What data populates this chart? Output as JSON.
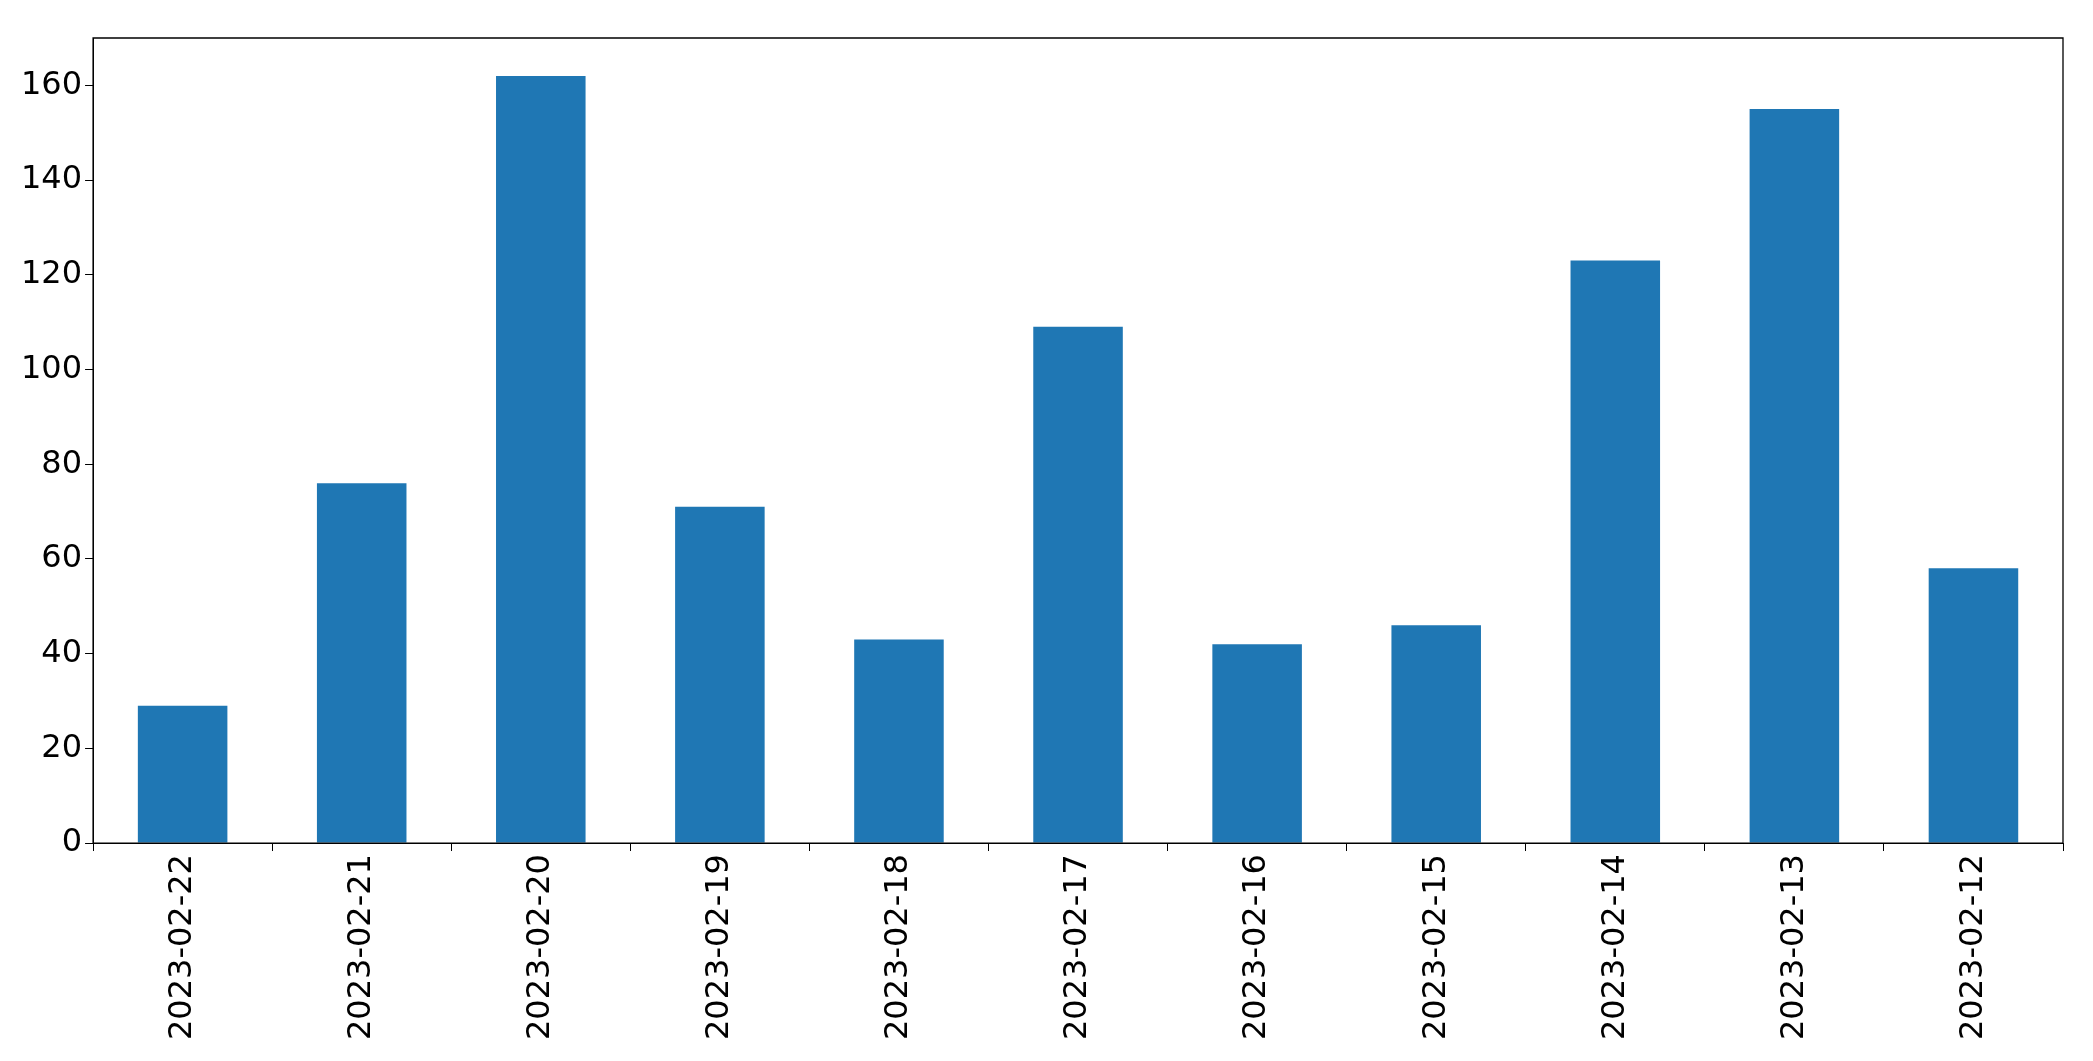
{
  "chart_data": {
    "type": "bar",
    "categories": [
      "2023-02-22",
      "2023-02-21",
      "2023-02-20",
      "2023-02-19",
      "2023-02-18",
      "2023-02-17",
      "2023-02-16",
      "2023-02-15",
      "2023-02-14",
      "2023-02-13",
      "2023-02-12"
    ],
    "values": [
      29,
      76,
      162,
      71,
      43,
      109,
      42,
      46,
      123,
      155,
      58
    ],
    "color": "#1f77b4",
    "ylim": [
      0,
      170
    ],
    "yticks": [
      0,
      20,
      40,
      60,
      80,
      100,
      120,
      140,
      160
    ],
    "grid": false,
    "legend": false
  }
}
